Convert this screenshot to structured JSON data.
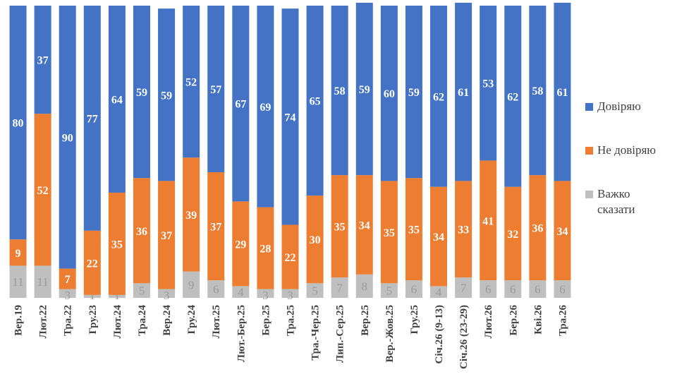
{
  "chart_data": {
    "type": "bar",
    "stacked": true,
    "categories": [
      "Вер.19",
      "Лют.22",
      "Тра.22",
      "Гру.23",
      "Лют.24",
      "Тра.24",
      "Вер.24",
      "Гру.24",
      "Лют.25",
      "Лют.-Бер.25",
      "Бер.25",
      "Тра.25",
      "Тра.-Чер.25",
      "Лип.-Сер.25",
      "Вер.25",
      "Вер.-Жов.25",
      "Гру.25",
      "Січ.26 (9-13)",
      "Січ.26 (23-29)",
      "Лют.26",
      "Бер.26",
      "Кві.26",
      "Тра.26"
    ],
    "series": [
      {
        "name": "Довіряю",
        "color": "#4472c4",
        "values": [
          80,
          37,
          90,
          77,
          64,
          59,
          59,
          52,
          57,
          67,
          69,
          74,
          65,
          58,
          59,
          60,
          59,
          62,
          61,
          53,
          62,
          58,
          61
        ]
      },
      {
        "name": "Не довіряю",
        "color": "#ed7d31",
        "values": [
          9,
          52,
          7,
          22,
          35,
          36,
          37,
          39,
          37,
          29,
          28,
          22,
          30,
          35,
          34,
          35,
          35,
          34,
          33,
          41,
          32,
          36,
          34
        ]
      },
      {
        "name": "Важко сказати",
        "color": "#bfbfbf",
        "values": [
          11,
          11,
          3,
          1,
          1,
          5,
          3,
          9,
          6,
          4,
          3,
          3,
          5,
          7,
          8,
          5,
          6,
          4,
          7,
          6,
          6,
          6,
          6
        ]
      }
    ],
    "ylim": [
      0,
      100
    ]
  }
}
